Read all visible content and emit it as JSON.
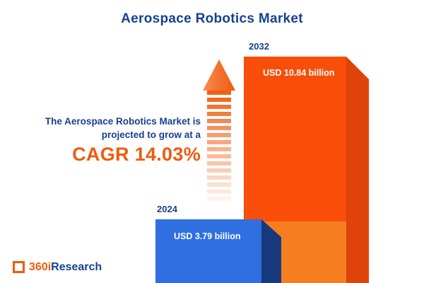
{
  "title": "Aerospace Robotics Market",
  "annotation": {
    "line1": "The Aerospace Robotics Market is",
    "line2": "projected to grow at a",
    "cagr": "CAGR 14.03%"
  },
  "chart_data": {
    "type": "bar",
    "title": "Aerospace Robotics Market",
    "categories": [
      "2024",
      "2032"
    ],
    "values": [
      3.79,
      10.84
    ],
    "unit": "USD billion",
    "value_labels": [
      "USD 3.79 billion",
      "USD 10.84 billion"
    ],
    "cagr_percent": 14.03,
    "orientation": "vertical",
    "legend": "none",
    "colors": {
      "bar_2024": "#2f6fe0",
      "bar_2024_side": "#16387d",
      "bar_2032": "#f84e0a",
      "bar_2032_lower": "#f57e21",
      "bar_2032_side": "#e0430a",
      "accent_orange": "#f15a0e",
      "navy": "#17418f"
    }
  },
  "logo": {
    "prefix": "360i",
    "suffix": "Research"
  }
}
